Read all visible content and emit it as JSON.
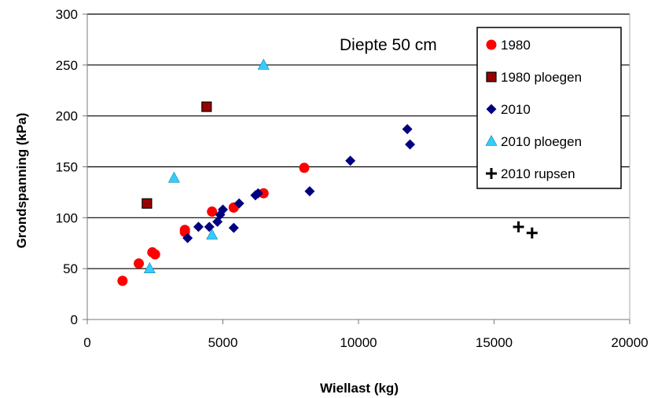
{
  "chart_data": {
    "type": "scatter",
    "annotation": "Diepte 50 cm",
    "xlabel": "Wiellast (kg)",
    "ylabel": "Grondspanning (kPa)",
    "xlim": [
      0,
      20000
    ],
    "ylim": [
      0,
      300
    ],
    "x_ticks": [
      0,
      5000,
      10000,
      15000,
      20000
    ],
    "y_ticks": [
      0,
      50,
      100,
      150,
      200,
      250,
      300
    ],
    "grid": "horizontal",
    "legend_position": "top-right",
    "series": [
      {
        "name": "1980",
        "marker": "circle",
        "color": "#ff0000",
        "points": [
          [
            1300,
            38
          ],
          [
            1900,
            55
          ],
          [
            2400,
            66
          ],
          [
            2500,
            64
          ],
          [
            3600,
            88
          ],
          [
            3600,
            86
          ],
          [
            4600,
            106
          ],
          [
            5400,
            110
          ],
          [
            6500,
            124
          ],
          [
            8000,
            149
          ]
        ]
      },
      {
        "name": "1980 ploegen",
        "marker": "square",
        "color": "#990000",
        "points": [
          [
            2200,
            114
          ],
          [
            4400,
            209
          ]
        ]
      },
      {
        "name": "2010",
        "marker": "diamond",
        "color": "#00007f",
        "points": [
          [
            3700,
            80
          ],
          [
            4100,
            91
          ],
          [
            4500,
            91
          ],
          [
            4800,
            96
          ],
          [
            4900,
            103
          ],
          [
            5000,
            108
          ],
          [
            5400,
            90
          ],
          [
            5600,
            114
          ],
          [
            6200,
            122
          ],
          [
            6300,
            124
          ],
          [
            8200,
            126
          ],
          [
            9700,
            156
          ],
          [
            11800,
            187
          ],
          [
            11900,
            172
          ]
        ]
      },
      {
        "name": "2010 ploegen",
        "marker": "triangle",
        "color": "#33ccff",
        "points": [
          [
            2300,
            50
          ],
          [
            3200,
            139
          ],
          [
            4600,
            83
          ],
          [
            6500,
            250
          ]
        ]
      },
      {
        "name": "2010 rupsen",
        "marker": "plus",
        "color": "#000000",
        "points": [
          [
            15900,
            91
          ],
          [
            16400,
            85
          ]
        ]
      }
    ]
  }
}
